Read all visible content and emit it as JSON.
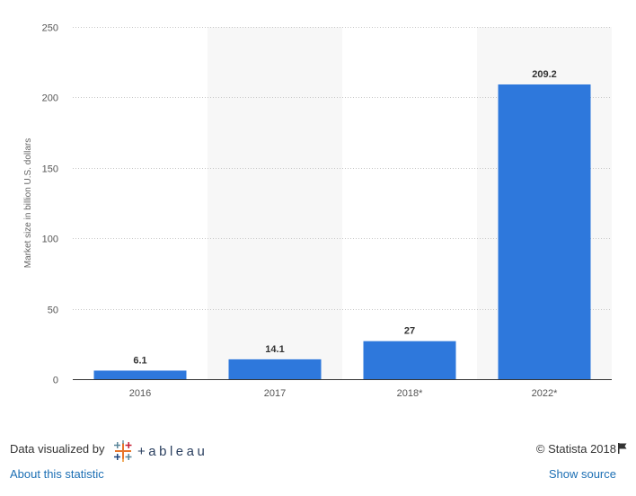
{
  "chart_data": {
    "type": "bar",
    "categories": [
      "2016",
      "2017",
      "2018*",
      "2022*"
    ],
    "values": [
      6.1,
      14.1,
      27,
      209.2
    ],
    "value_labels": [
      "6.1",
      "14.1",
      "27",
      "209.2"
    ],
    "ylabel": "Market size in billion U.S. dollars",
    "ylim": [
      0,
      250
    ],
    "yticks": [
      0,
      50,
      100,
      150,
      200,
      250
    ],
    "ytick_labels": [
      "0",
      "50",
      "100",
      "150",
      "200",
      "250"
    ],
    "grid": true,
    "bar_color": "#2e78dc",
    "alt_band_color": "#f7f7f7"
  },
  "footer": {
    "visualized_by": "Data visualized by",
    "tableau_text": "+ableau",
    "copyright": "© Statista 2018",
    "about_link": "About this statistic",
    "source_link": "Show source",
    "link_color": "#1c6fb4"
  }
}
